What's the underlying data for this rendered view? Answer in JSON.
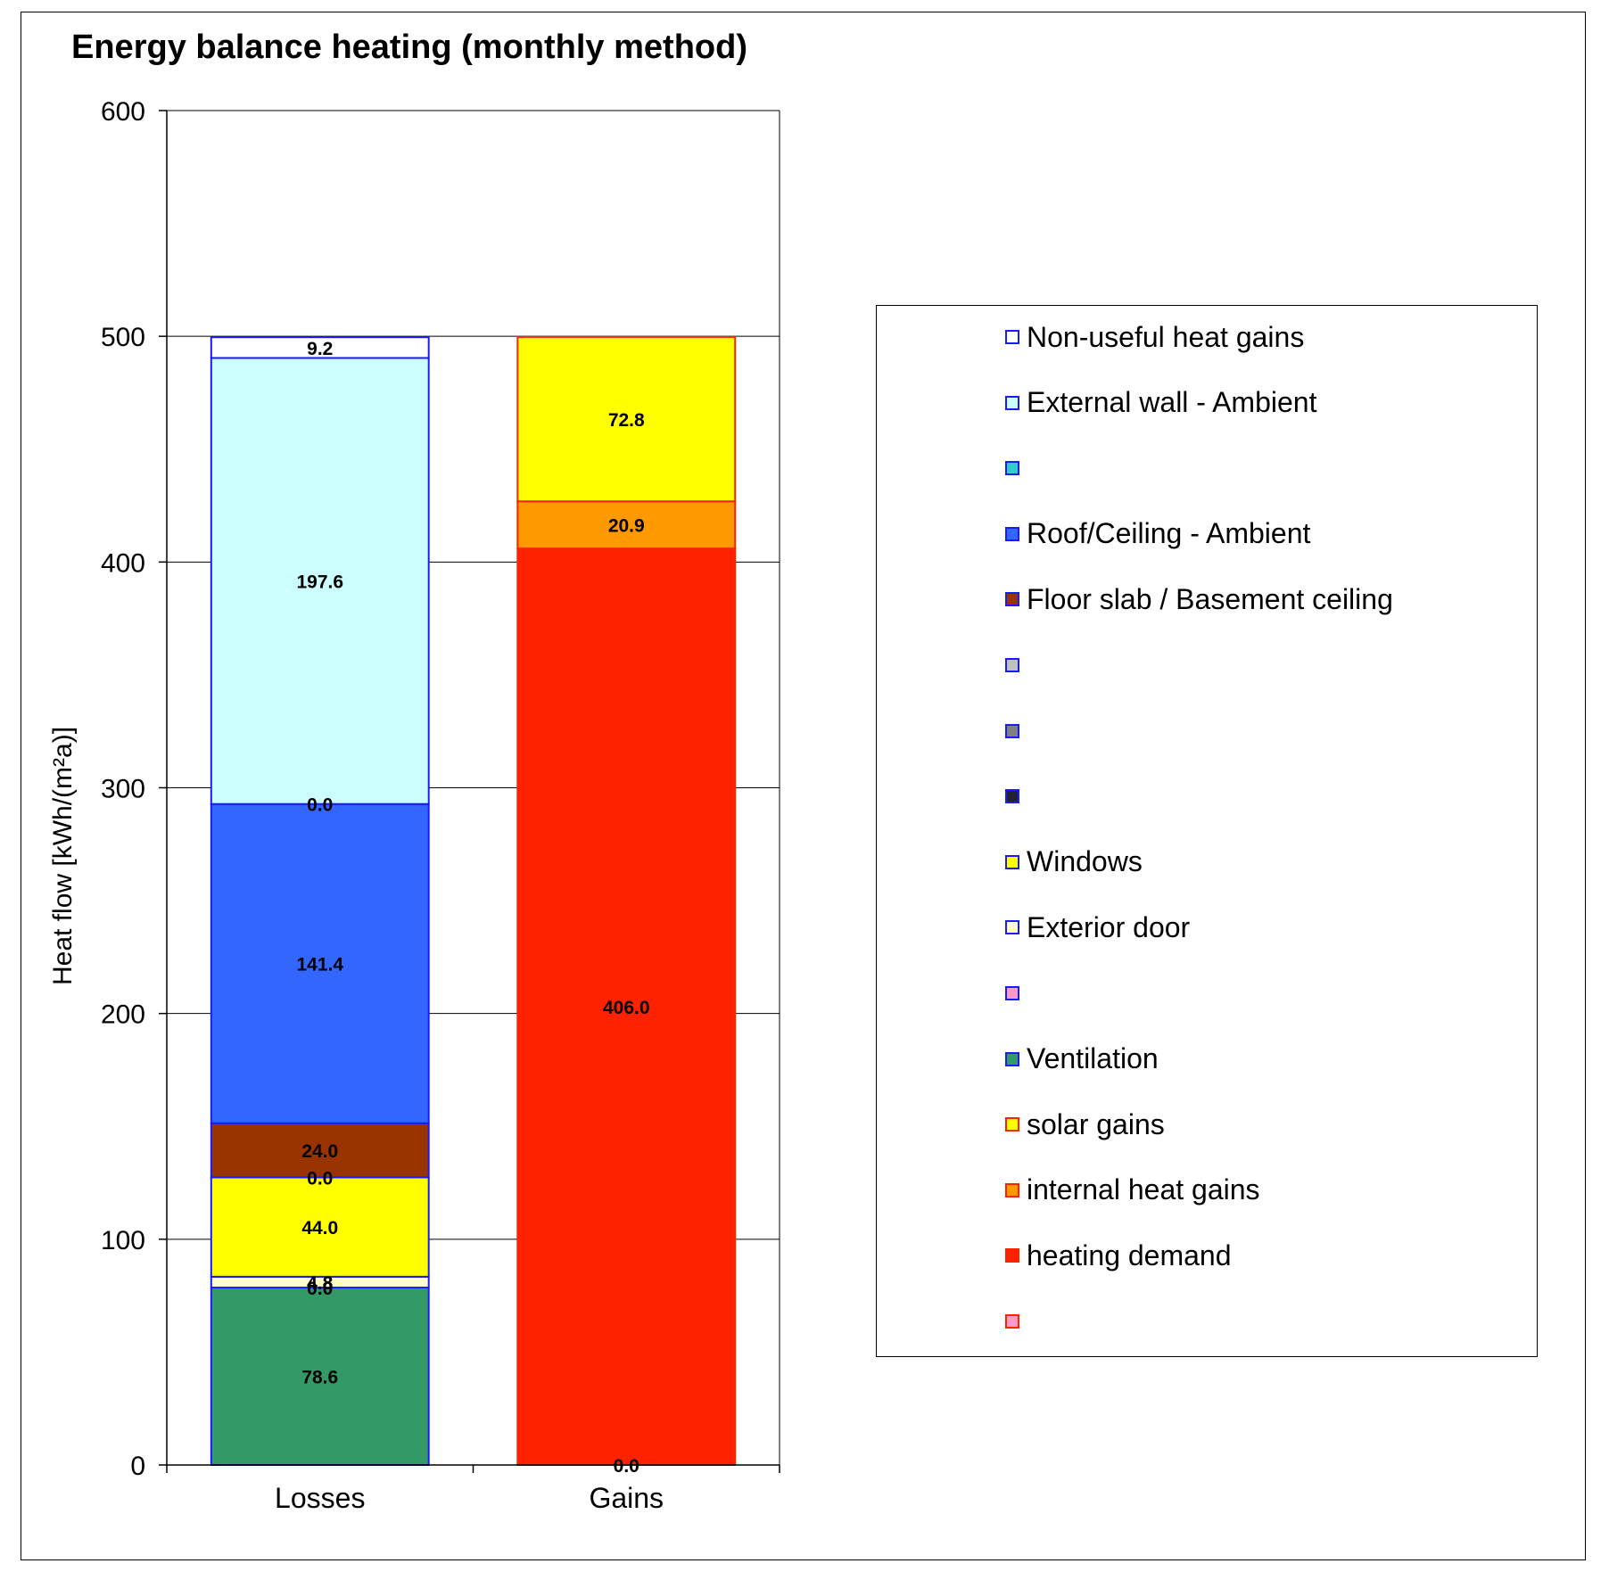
{
  "chart_data": {
    "type": "bar",
    "stacked": true,
    "title": "Energy balance heating (monthly method)",
    "ylabel": "Heat flow [kWh/(m²a)]",
    "xlabel": "",
    "ylim": [
      0,
      600
    ],
    "yticks": [
      "0",
      "100",
      "200",
      "300",
      "400",
      "500",
      "600"
    ],
    "grid": true,
    "legend_position": "right",
    "categories": [
      "Losses",
      "Gains"
    ],
    "stacks": [
      {
        "category": "Losses",
        "segments": [
          {
            "series": "Ventilation",
            "value": 78.6,
            "label": "78.6",
            "color": "#339966",
            "label_color": "#ffffff"
          },
          {
            "series": "",
            "value": 0.0,
            "label": "0.0",
            "color": "#ff99cc",
            "label_color": "#000000"
          },
          {
            "series": "Exterior door",
            "value": 4.8,
            "label": "4.8",
            "color": "#ffffcc",
            "label_color": "#000000"
          },
          {
            "series": "Windows",
            "value": 44.0,
            "label": "44.0",
            "color": "#ffff00",
            "label_color": "#000000"
          },
          {
            "series": "",
            "value": 0.0,
            "label": "0.0",
            "color": "#222233",
            "label_color": "#000000"
          },
          {
            "series": "Floor slab / Basement ceiling",
            "value": 24.0,
            "label": "24.0",
            "color": "#993300",
            "label_color": "#ffffff"
          },
          {
            "series": "Roof/Ceiling - Ambient",
            "value": 141.4,
            "label": "141.4",
            "color": "#3366ff",
            "label_color": "#000000"
          },
          {
            "series": "",
            "value": 0.0,
            "label": "0.0",
            "color": "#33cccc",
            "label_color": "#000000"
          },
          {
            "series": "External wall - Ambient",
            "value": 197.6,
            "label": "197.6",
            "color": "#ccffff",
            "label_color": "#000000"
          },
          {
            "series": "Non-useful heat gains",
            "value": 9.2,
            "label": "9.2",
            "color": "#ffffff",
            "label_color": "#000000"
          }
        ]
      },
      {
        "category": "Gains",
        "segments": [
          {
            "series": "",
            "value": 0.0,
            "label": "0.0",
            "color": "#ff99cc",
            "label_color": "#000000"
          },
          {
            "series": "heating demand",
            "value": 406.0,
            "label": "406.0",
            "color": "#ff2200",
            "label_color": "#ffffff"
          },
          {
            "series": "internal heat gains",
            "value": 20.9,
            "label": "20.9",
            "color": "#ff9900",
            "label_color": "#000000"
          },
          {
            "series": "solar gains",
            "value": 72.8,
            "label": "72.8",
            "color": "#ffff00",
            "label_color": "#000000"
          }
        ]
      }
    ],
    "legend": [
      {
        "label": "Non-useful heat gains",
        "color": "#ffffff",
        "border": "#1a1aff"
      },
      {
        "label": "External wall - Ambient",
        "color": "#ccffff",
        "border": "#1a1aff"
      },
      {
        "label": "",
        "color": "#33cccc",
        "border": "#1a1aff"
      },
      {
        "label": "Roof/Ceiling - Ambient",
        "color": "#3366ff",
        "border": "#1a1aff"
      },
      {
        "label": "Floor slab / Basement ceiling",
        "color": "#993300",
        "border": "#1a1aff"
      },
      {
        "label": "",
        "color": "#c0c0c0",
        "border": "#1a1aff"
      },
      {
        "label": "",
        "color": "#808080",
        "border": "#1a1aff"
      },
      {
        "label": "",
        "color": "#222233",
        "border": "#1a1aff"
      },
      {
        "label": "Windows",
        "color": "#ffff00",
        "border": "#1a1aff"
      },
      {
        "label": "Exterior door",
        "color": "#ffffcc",
        "border": "#1a1aff"
      },
      {
        "label": "",
        "color": "#ff99cc",
        "border": "#1a1aff"
      },
      {
        "label": "Ventilation",
        "color": "#339966",
        "border": "#1a1aff"
      },
      {
        "label": "solar gains",
        "color": "#ffff00",
        "border": "#ff2200"
      },
      {
        "label": "internal heat gains",
        "color": "#ff9900",
        "border": "#ff2200"
      },
      {
        "label": "heating demand",
        "color": "#ff2200",
        "border": "#ff2200"
      },
      {
        "label": "",
        "color": "#ff99cc",
        "border": "#ff2200"
      }
    ],
    "stack_borders": {
      "Losses": "#1a1aff",
      "Gains": "#ff2200"
    }
  }
}
